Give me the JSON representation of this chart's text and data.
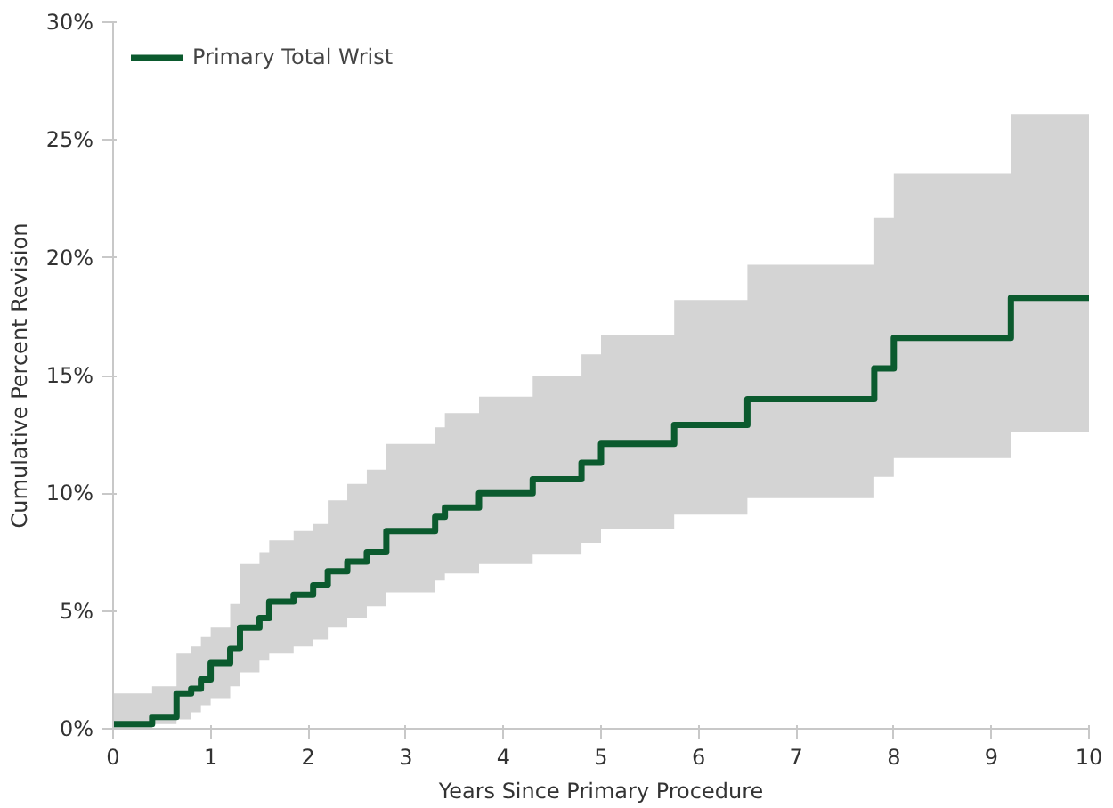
{
  "chart_data": {
    "type": "step",
    "xlabel": "Years Since Primary Procedure",
    "ylabel": "Cumulative Percent Revision",
    "x": [
      0,
      0.4,
      0.65,
      0.8,
      0.9,
      1.0,
      1.2,
      1.3,
      1.5,
      1.6,
      1.85,
      2.05,
      2.2,
      2.4,
      2.6,
      2.8,
      3.3,
      3.4,
      3.75,
      4.3,
      4.8,
      5.0,
      5.75,
      6.5,
      7.8,
      8.0,
      9.2,
      10
    ],
    "series": [
      {
        "name": "Primary Total Wrist",
        "color": "#0b5a2e",
        "values": [
          0.2,
          0.5,
          1.5,
          1.7,
          2.1,
          2.8,
          3.4,
          4.3,
          4.7,
          5.4,
          5.7,
          6.1,
          6.7,
          7.1,
          7.5,
          8.4,
          9.0,
          9.4,
          10.0,
          10.6,
          11.3,
          12.1,
          12.9,
          14.0,
          15.3,
          16.6,
          18.3,
          18.3
        ],
        "lower": [
          0,
          0.2,
          0.4,
          0.7,
          1.0,
          1.3,
          1.8,
          2.4,
          2.9,
          3.2,
          3.5,
          3.8,
          4.3,
          4.7,
          5.2,
          5.8,
          6.3,
          6.6,
          7.0,
          7.4,
          7.9,
          8.5,
          9.1,
          9.8,
          10.7,
          11.5,
          12.6,
          12.6
        ],
        "upper": [
          1.5,
          1.8,
          3.2,
          3.5,
          3.9,
          4.3,
          5.3,
          7.0,
          7.5,
          8.0,
          8.4,
          8.7,
          9.7,
          10.4,
          11.0,
          12.1,
          12.8,
          13.4,
          14.1,
          15.0,
          15.9,
          16.7,
          18.2,
          19.7,
          21.7,
          23.6,
          26.1,
          26.1
        ]
      }
    ],
    "xlim": [
      0,
      10
    ],
    "ylim": [
      0,
      30
    ],
    "xticks": [
      0,
      1,
      2,
      3,
      4,
      5,
      6,
      7,
      8,
      9,
      10
    ],
    "yticks": [
      {
        "value": 0,
        "label": "0%"
      },
      {
        "value": 5,
        "label": "5%"
      },
      {
        "value": 10,
        "label": "10%"
      },
      {
        "value": 15,
        "label": "15%"
      },
      {
        "value": 20,
        "label": "20%"
      },
      {
        "value": 25,
        "label": "25%"
      },
      {
        "value": 30,
        "label": "30%"
      }
    ],
    "grid": false,
    "legend": "top left",
    "line_style": "solid"
  }
}
